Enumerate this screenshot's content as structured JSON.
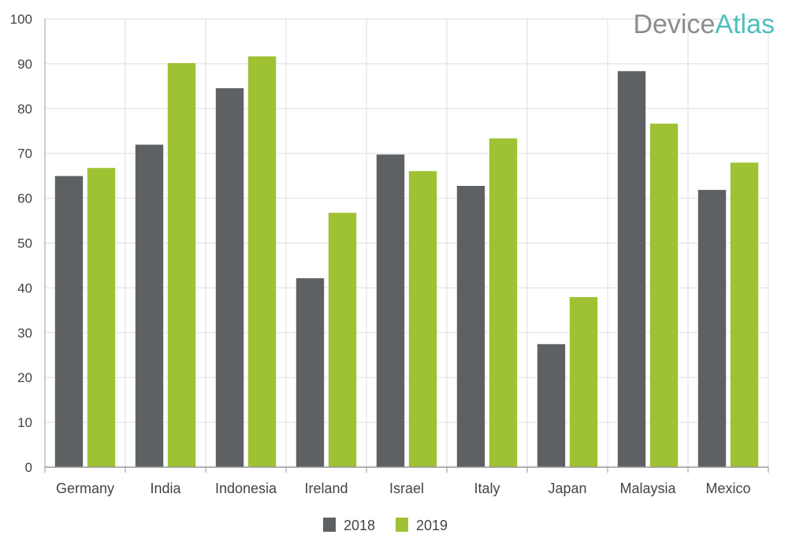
{
  "logo": {
    "part1": "Device",
    "part2": "Atlas"
  },
  "colors": {
    "2018": "#5d6163",
    "2019": "#9fc134",
    "grid": "#dddddd",
    "axis": "#999999"
  },
  "chart_data": {
    "type": "bar",
    "categories": [
      "Germany",
      "India",
      "Indonesia",
      "Ireland",
      "Israel",
      "Italy",
      "Japan",
      "Malaysia",
      "Mexico"
    ],
    "series": [
      {
        "name": "2018",
        "values": [
          65,
          72,
          84.6,
          42.2,
          69.8,
          62.8,
          27.5,
          88.4,
          61.9
        ]
      },
      {
        "name": "2019",
        "values": [
          66.8,
          90.2,
          91.7,
          56.8,
          66.1,
          73.4,
          38,
          76.7,
          68
        ]
      }
    ],
    "ylim": [
      0,
      100
    ],
    "yticks": [
      "0",
      "10",
      "20",
      "30",
      "40",
      "50",
      "60",
      "70",
      "80",
      "90",
      "100"
    ],
    "grid": true,
    "legend": "bottom"
  }
}
